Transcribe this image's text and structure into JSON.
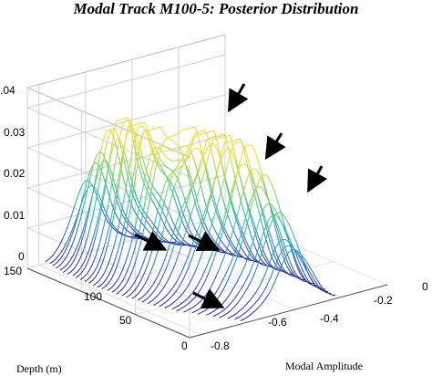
{
  "chart_data": {
    "type": "surface-waterfall",
    "title": "Modal Track M100-5: Posterior Distribution",
    "xlabel": "Modal Amplitude",
    "ylabel": "Depth (m)",
    "zlabel": "",
    "x_ticks": [
      "-0.8",
      "-0.6",
      "-0.4",
      "-0.2",
      "0"
    ],
    "y_ticks": [
      "0",
      "50",
      "100",
      "150"
    ],
    "z_ticks": [
      "0",
      "0.01",
      "0.02",
      "0.03",
      "0.04"
    ],
    "xlim": [
      -0.85,
      0.0
    ],
    "ylim": [
      0,
      150
    ],
    "zlim": [
      0,
      0.04
    ],
    "grid": true,
    "colormap": [
      "#1b1b8f",
      "#2468c9",
      "#1fb6b0",
      "#6ccf5a",
      "#e8dc2e"
    ],
    "peaks": [
      {
        "amplitude": -0.6,
        "depth": 110,
        "density": 0.034
      },
      {
        "amplitude": -0.48,
        "depth": 70,
        "density": 0.03
      },
      {
        "amplitude": -0.38,
        "depth": 40,
        "density": 0.025
      }
    ],
    "arrows": 6
  },
  "text": {
    "title": "Modal Track M100-5: Posterior Distribution",
    "xlabel": "Modal Amplitude",
    "ylabel": "Depth (m)",
    "z_tick_0": "0",
    "z_tick_1": "0.01",
    "z_tick_2": "0.02",
    "z_tick_3": "0.03",
    "z_tick_4": ".04",
    "y_tick_0": "0",
    "y_tick_50": "50",
    "y_tick_100": "100",
    "y_tick_150": "150",
    "x_tick_m08": "-0.8",
    "x_tick_m06": "-0.6",
    "x_tick_m04": "-0.4",
    "x_tick_m02": "-0.2",
    "x_tick_0": "0"
  }
}
